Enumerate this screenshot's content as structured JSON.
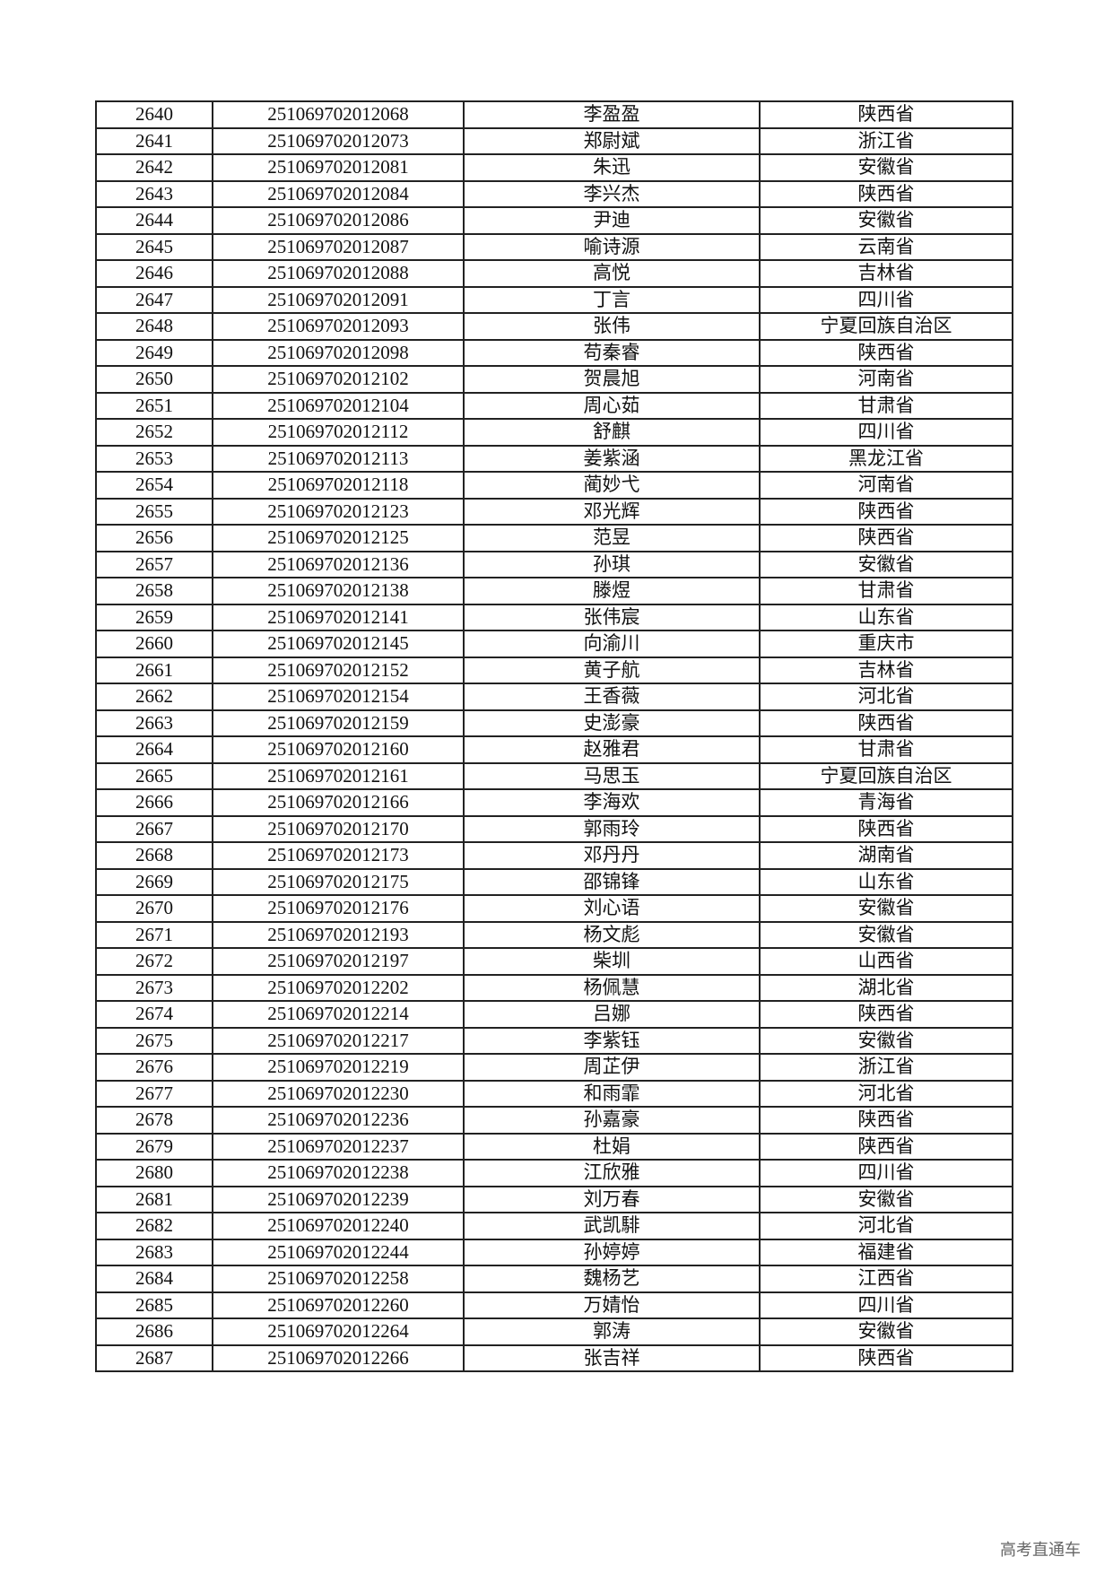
{
  "rows": [
    [
      "2640",
      "251069702012068",
      "李盈盈",
      "陕西省"
    ],
    [
      "2641",
      "251069702012073",
      "郑尉斌",
      "浙江省"
    ],
    [
      "2642",
      "251069702012081",
      "朱迅",
      "安徽省"
    ],
    [
      "2643",
      "251069702012084",
      "李兴杰",
      "陕西省"
    ],
    [
      "2644",
      "251069702012086",
      "尹迪",
      "安徽省"
    ],
    [
      "2645",
      "251069702012087",
      "喻诗源",
      "云南省"
    ],
    [
      "2646",
      "251069702012088",
      "高悦",
      "吉林省"
    ],
    [
      "2647",
      "251069702012091",
      "丁言",
      "四川省"
    ],
    [
      "2648",
      "251069702012093",
      "张伟",
      "宁夏回族自治区"
    ],
    [
      "2649",
      "251069702012098",
      "苟秦睿",
      "陕西省"
    ],
    [
      "2650",
      "251069702012102",
      "贺晨旭",
      "河南省"
    ],
    [
      "2651",
      "251069702012104",
      "周心茹",
      "甘肃省"
    ],
    [
      "2652",
      "251069702012112",
      "舒麒",
      "四川省"
    ],
    [
      "2653",
      "251069702012113",
      "姜紫涵",
      "黑龙江省"
    ],
    [
      "2654",
      "251069702012118",
      "蔺妙弋",
      "河南省"
    ],
    [
      "2655",
      "251069702012123",
      "邓光辉",
      "陕西省"
    ],
    [
      "2656",
      "251069702012125",
      "范昱",
      "陕西省"
    ],
    [
      "2657",
      "251069702012136",
      "孙琪",
      "安徽省"
    ],
    [
      "2658",
      "251069702012138",
      "滕煜",
      "甘肃省"
    ],
    [
      "2659",
      "251069702012141",
      "张伟宸",
      "山东省"
    ],
    [
      "2660",
      "251069702012145",
      "向渝川",
      "重庆市"
    ],
    [
      "2661",
      "251069702012152",
      "黄子航",
      "吉林省"
    ],
    [
      "2662",
      "251069702012154",
      "王香薇",
      "河北省"
    ],
    [
      "2663",
      "251069702012159",
      "史澎豪",
      "陕西省"
    ],
    [
      "2664",
      "251069702012160",
      "赵雅君",
      "甘肃省"
    ],
    [
      "2665",
      "251069702012161",
      "马思玉",
      "宁夏回族自治区"
    ],
    [
      "2666",
      "251069702012166",
      "李海欢",
      "青海省"
    ],
    [
      "2667",
      "251069702012170",
      "郭雨玲",
      "陕西省"
    ],
    [
      "2668",
      "251069702012173",
      "邓丹丹",
      "湖南省"
    ],
    [
      "2669",
      "251069702012175",
      "邵锦锋",
      "山东省"
    ],
    [
      "2670",
      "251069702012176",
      "刘心语",
      "安徽省"
    ],
    [
      "2671",
      "251069702012193",
      "杨文彪",
      "安徽省"
    ],
    [
      "2672",
      "251069702012197",
      "柴圳",
      "山西省"
    ],
    [
      "2673",
      "251069702012202",
      "杨佩慧",
      "湖北省"
    ],
    [
      "2674",
      "251069702012214",
      "吕娜",
      "陕西省"
    ],
    [
      "2675",
      "251069702012217",
      "李紫钰",
      "安徽省"
    ],
    [
      "2676",
      "251069702012219",
      "周芷伊",
      "浙江省"
    ],
    [
      "2677",
      "251069702012230",
      "和雨霏",
      "河北省"
    ],
    [
      "2678",
      "251069702012236",
      "孙嘉豪",
      "陕西省"
    ],
    [
      "2679",
      "251069702012237",
      "杜娟",
      "陕西省"
    ],
    [
      "2680",
      "251069702012238",
      "江欣雅",
      "四川省"
    ],
    [
      "2681",
      "251069702012239",
      "刘万春",
      "安徽省"
    ],
    [
      "2682",
      "251069702012240",
      "武凯騑",
      "河北省"
    ],
    [
      "2683",
      "251069702012244",
      "孙婷婷",
      "福建省"
    ],
    [
      "2684",
      "251069702012258",
      "魏杨艺",
      "江西省"
    ],
    [
      "2685",
      "251069702012260",
      "万婧怡",
      "四川省"
    ],
    [
      "2686",
      "251069702012264",
      "郭涛",
      "安徽省"
    ],
    [
      "2687",
      "251069702012266",
      "张吉祥",
      "陕西省"
    ]
  ],
  "watermark": "高考直通车"
}
